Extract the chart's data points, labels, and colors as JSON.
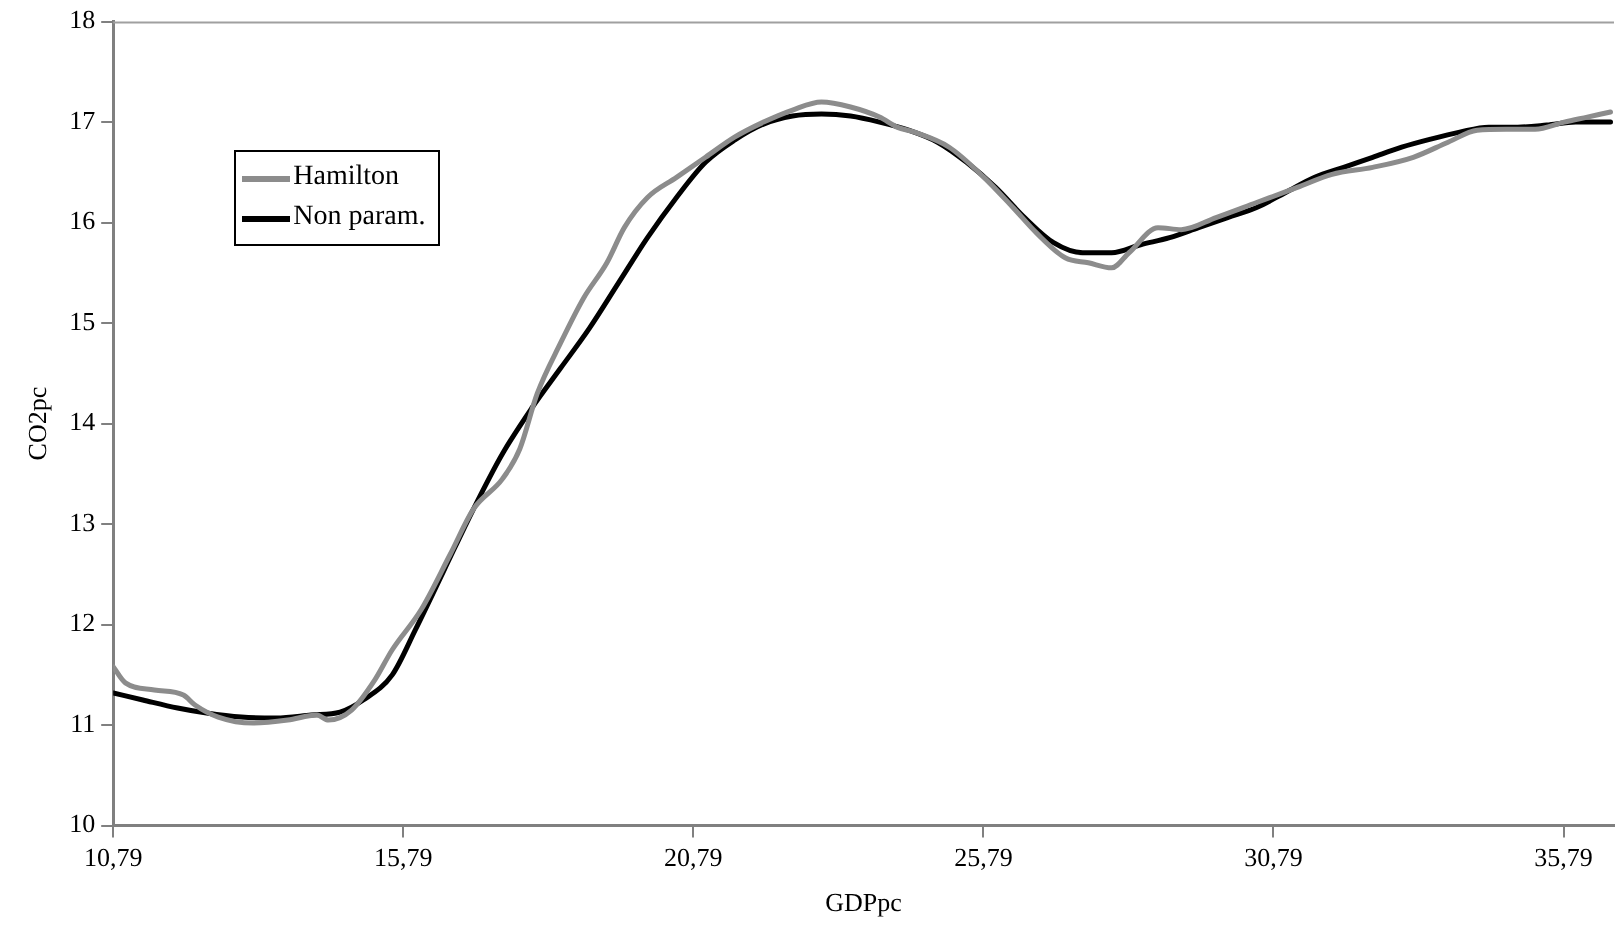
{
  "chart_data": {
    "type": "line",
    "xlabel": "GDPpc",
    "ylabel": "CO2pc",
    "xlim": [
      10.79,
      36.66
    ],
    "ylim": [
      10,
      18
    ],
    "xticks": [
      {
        "value": 10.79,
        "label": "10,79"
      },
      {
        "value": 15.79,
        "label": "15,79"
      },
      {
        "value": 20.79,
        "label": "20,79"
      },
      {
        "value": 25.79,
        "label": "25,79"
      },
      {
        "value": 30.79,
        "label": "30,79"
      },
      {
        "value": 35.79,
        "label": "35,79"
      }
    ],
    "yticks": [
      10,
      11,
      12,
      13,
      14,
      15,
      16,
      17,
      18
    ],
    "grid": false,
    "legend": "top left",
    "marker": "none",
    "line_style": "solid",
    "series": [
      {
        "name": "Hamilton",
        "color": "#8c8c8c",
        "x": [
          10.79,
          11.0,
          11.5,
          12.0,
          12.2,
          12.6,
          13.2,
          13.8,
          14.3,
          14.5,
          14.9,
          15.3,
          15.6,
          16.1,
          16.6,
          17.0,
          17.5,
          17.8,
          18.1,
          18.5,
          18.9,
          19.3,
          19.6,
          20.0,
          20.5,
          21.0,
          21.5,
          22.0,
          22.5,
          23.0,
          23.5,
          24.0,
          24.3,
          24.6,
          25.2,
          25.8,
          26.3,
          26.7,
          27.2,
          27.6,
          28.0,
          28.3,
          28.8,
          29.2,
          29.8,
          30.5,
          31.2,
          31.8,
          32.5,
          33.2,
          33.8,
          34.3,
          34.8,
          35.3,
          35.8,
          36.2,
          36.6
        ],
        "values": [
          11.58,
          11.42,
          11.35,
          11.3,
          11.2,
          11.08,
          11.02,
          11.05,
          11.1,
          11.05,
          11.15,
          11.45,
          11.75,
          12.15,
          12.7,
          13.15,
          13.45,
          13.75,
          14.3,
          14.8,
          15.25,
          15.6,
          15.95,
          16.25,
          16.45,
          16.65,
          16.85,
          17.0,
          17.12,
          17.2,
          17.15,
          17.05,
          16.95,
          16.9,
          16.75,
          16.45,
          16.15,
          15.9,
          15.65,
          15.6,
          15.55,
          15.7,
          15.95,
          15.93,
          16.05,
          16.2,
          16.35,
          16.48,
          16.55,
          16.65,
          16.8,
          16.92,
          16.93,
          16.93,
          17.0,
          17.05,
          17.1
        ]
      },
      {
        "name": "Non param.",
        "color": "#000000",
        "x": [
          10.79,
          11.3,
          11.9,
          12.4,
          13.0,
          13.6,
          14.2,
          14.7,
          15.1,
          15.6,
          16.0,
          16.5,
          17.0,
          17.5,
          18.0,
          18.5,
          19.0,
          19.5,
          20.0,
          20.5,
          21.0,
          21.5,
          22.0,
          22.5,
          23.0,
          23.5,
          24.0,
          24.5,
          25.0,
          25.5,
          26.0,
          26.5,
          27.0,
          27.5,
          28.0,
          28.5,
          29.0,
          29.5,
          30.0,
          30.5,
          31.0,
          31.5,
          32.0,
          32.5,
          33.0,
          33.5,
          34.0,
          34.5,
          35.0,
          35.5,
          36.0,
          36.6
        ],
        "values": [
          11.32,
          11.25,
          11.17,
          11.12,
          11.08,
          11.07,
          11.1,
          11.13,
          11.25,
          11.5,
          11.95,
          12.55,
          13.15,
          13.7,
          14.15,
          14.55,
          14.95,
          15.4,
          15.85,
          16.25,
          16.6,
          16.82,
          16.98,
          17.06,
          17.08,
          17.06,
          17.0,
          16.92,
          16.8,
          16.6,
          16.35,
          16.05,
          15.8,
          15.7,
          15.7,
          15.78,
          15.85,
          15.95,
          16.05,
          16.15,
          16.3,
          16.45,
          16.55,
          16.65,
          16.75,
          16.83,
          16.9,
          16.95,
          16.95,
          16.97,
          17.0,
          17.0
        ]
      }
    ]
  }
}
